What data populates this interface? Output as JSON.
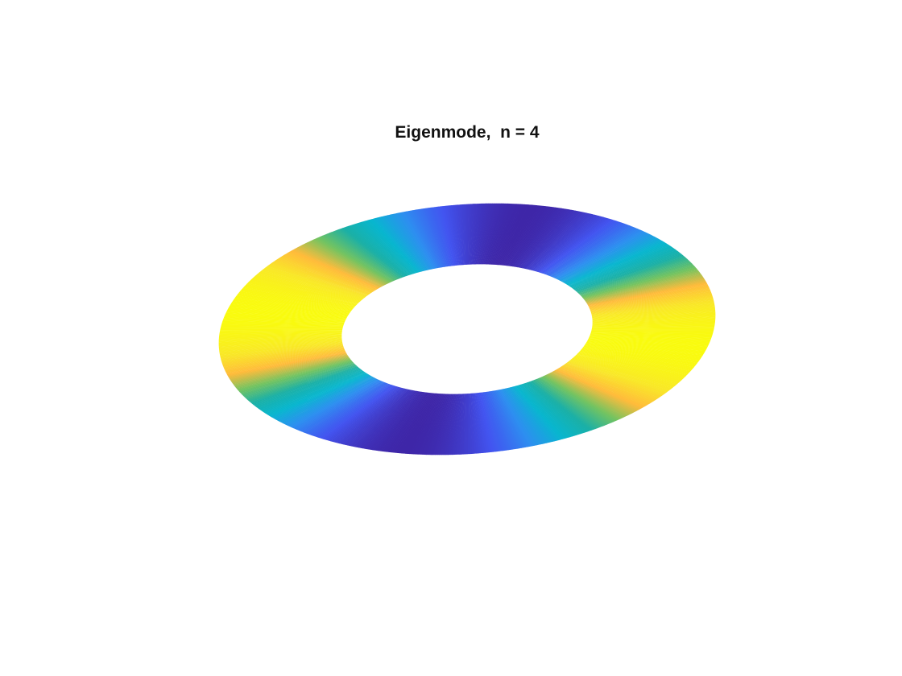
{
  "chart_data": {
    "type": "surface",
    "title": "Eigenmode,  n = 4",
    "mode_number": 4,
    "domain": "elliptical annulus",
    "view": "3-D, tilted",
    "axes_visible": false,
    "grid": false,
    "legend": "none",
    "colormap": "parula",
    "colormap_stops": [
      "#3e26a8",
      "#4254f0",
      "#2d8ef0",
      "#07b6cf",
      "#1ab0a6",
      "#73c360",
      "#ffbb3a",
      "#f9e827",
      "#f9fb0e"
    ]
  }
}
